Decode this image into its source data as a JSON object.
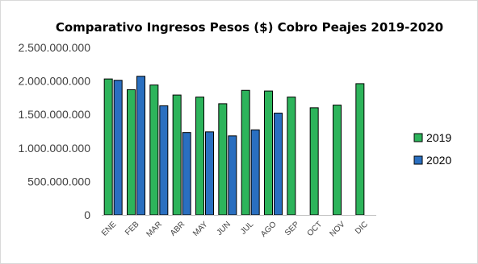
{
  "chart_data": {
    "type": "bar",
    "title": "Comparativo Ingresos Pesos ($) Cobro Peajes 2019-2020",
    "xlabel": "",
    "ylabel": "",
    "categories": [
      "ENE",
      "FEB",
      "MAR",
      "ABR",
      "MAY",
      "JUN",
      "JUL",
      "AGO",
      "SEP",
      "OCT",
      "NOV",
      "DIC"
    ],
    "ylim": [
      0,
      2500000000
    ],
    "ytick_values": [
      0,
      500000000,
      1000000000,
      1500000000,
      2000000000,
      2500000000
    ],
    "ytick_labels": [
      "0",
      "500.000.000",
      "1.000.000.000",
      "1.500.000.000",
      "2.000.000.000",
      "2.500.000.000"
    ],
    "grid": false,
    "legend_position": "right",
    "series": [
      {
        "name": "2019",
        "color": "#2db45b",
        "values": [
          2030000000,
          1870000000,
          1940000000,
          1790000000,
          1760000000,
          1660000000,
          1860000000,
          1850000000,
          1760000000,
          1600000000,
          1640000000,
          1960000000
        ]
      },
      {
        "name": "2020",
        "color": "#2a6fc0",
        "values": [
          2010000000,
          2070000000,
          1630000000,
          1230000000,
          1240000000,
          1180000000,
          1270000000,
          1520000000,
          null,
          null,
          null,
          null
        ]
      }
    ]
  }
}
